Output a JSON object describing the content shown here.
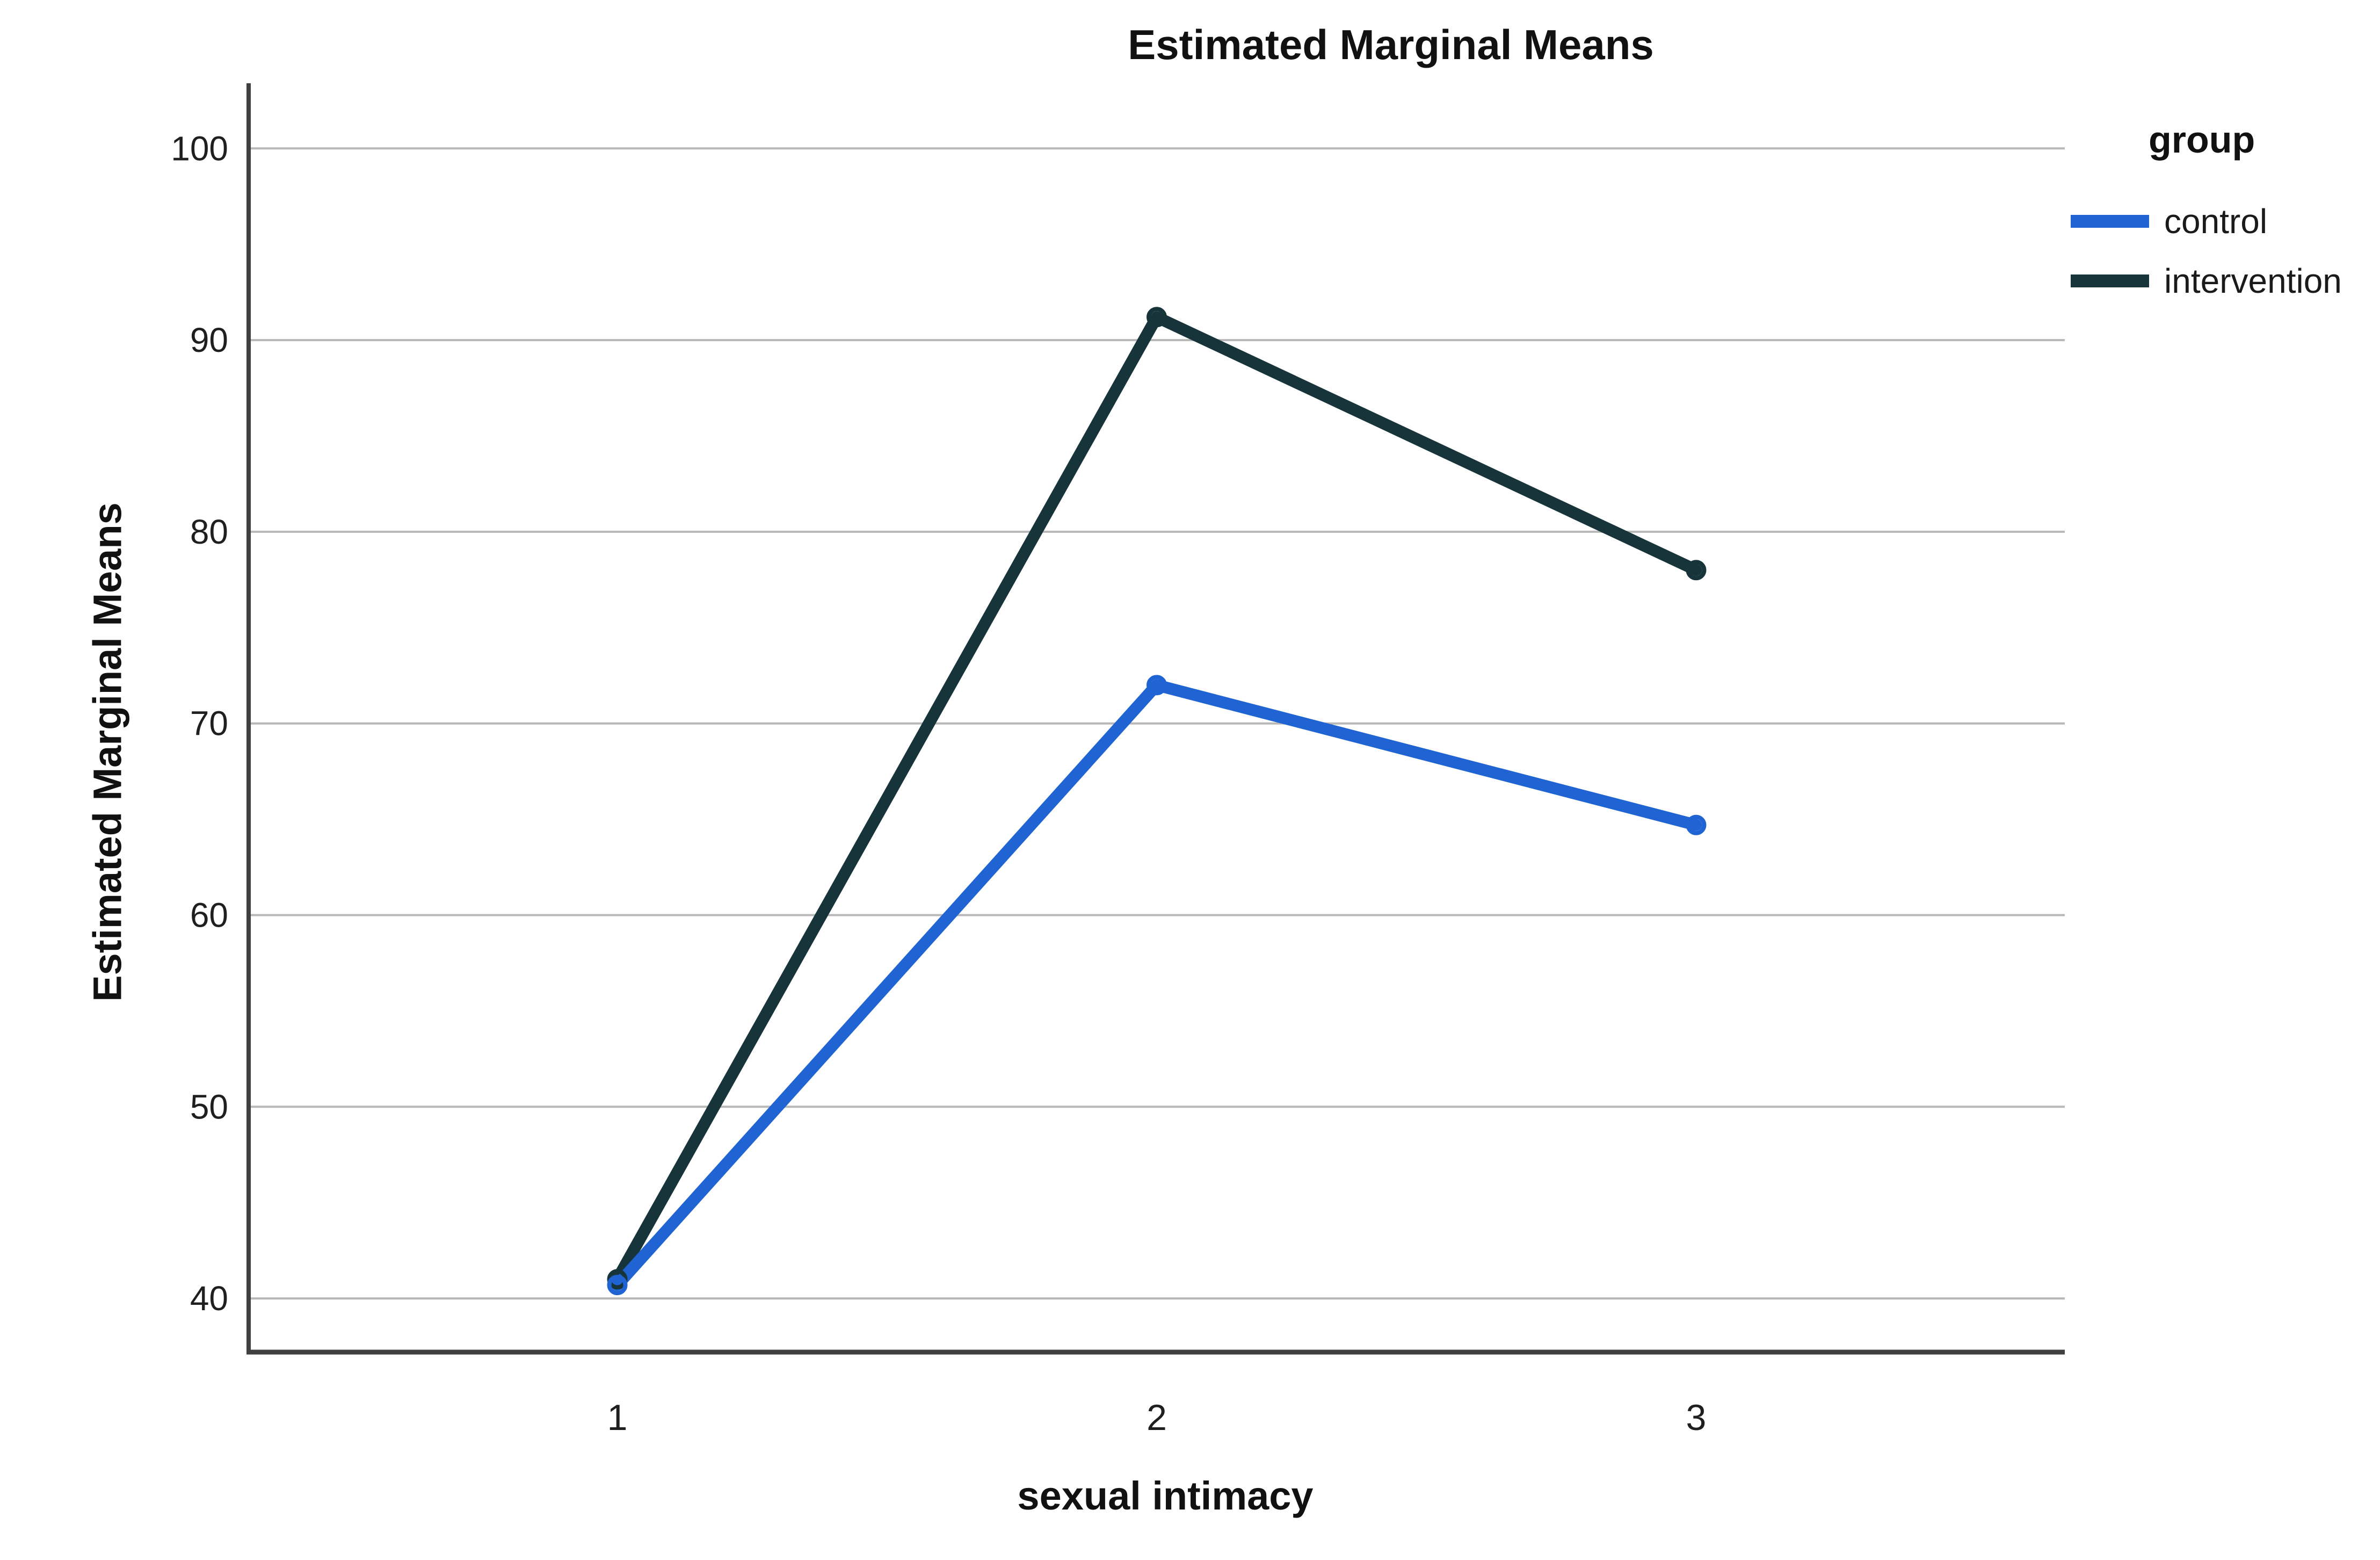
{
  "figure": {
    "title": "Estimated Marginal Means"
  },
  "legend": {
    "title": "group",
    "items": [
      {
        "label": "control",
        "color": "#2064d4"
      },
      {
        "label": "intervention",
        "color": "#16343a"
      }
    ]
  },
  "chart_data": {
    "type": "line",
    "title": "Estimated Marginal Means",
    "xlabel": "sexual intimacy",
    "ylabel": "Estimated Marginal Means",
    "categories": [
      "1",
      "2",
      "3"
    ],
    "y_ticks": [
      40,
      50,
      60,
      70,
      80,
      90,
      100
    ],
    "ylim": [
      37.2,
      103.4
    ],
    "grid": true,
    "legend_position": "top-right",
    "marker": "open-circle",
    "gridline_color": "#b8b8b8",
    "axis_color": "#3f3f3f",
    "series": [
      {
        "name": "control",
        "color": "#2064d4",
        "values": [
          40.7,
          72.0,
          64.7
        ]
      },
      {
        "name": "intervention",
        "color": "#16343a",
        "values": [
          41.0,
          91.2,
          78.0
        ]
      }
    ]
  }
}
